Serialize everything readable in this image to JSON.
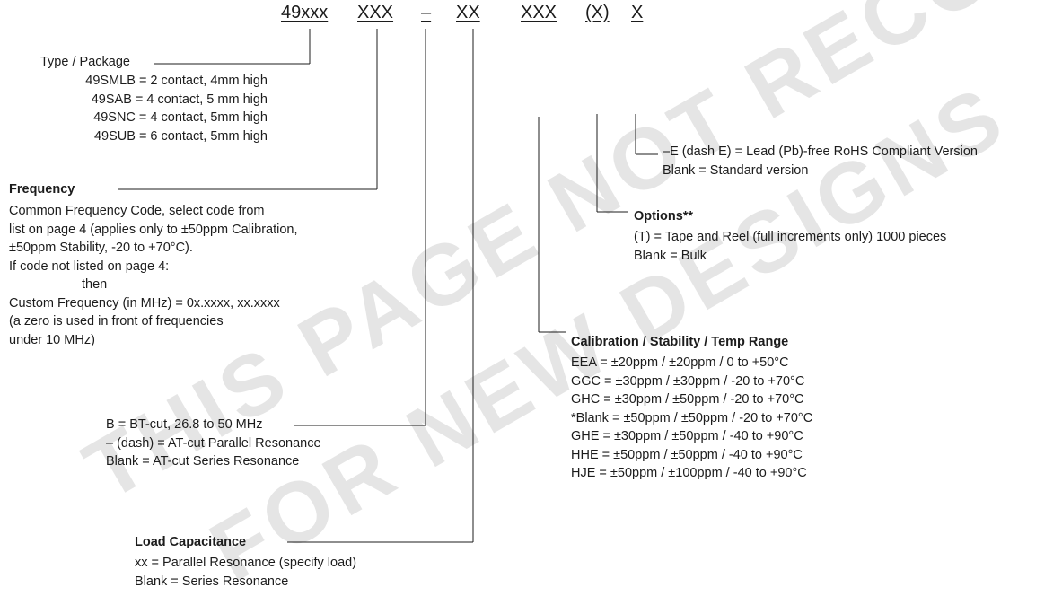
{
  "watermark": {
    "line1": "THIS PAGE NOT RECOMMENDED",
    "line2": "FOR NEW DESIGNS"
  },
  "part_number": {
    "segments": [
      "49xxx",
      "XXX",
      "–",
      "XX",
      "XXX",
      "(X)",
      "X"
    ]
  },
  "package": {
    "title": "Type / Package",
    "items": [
      "49SMLB = 2 contact, 4mm high",
      "49SAB = 4 contact, 5 mm high",
      "49SNC = 4 contact, 5mm high",
      "49SUB = 6 contact, 5mm high"
    ]
  },
  "frequency": {
    "title": "Frequency",
    "lines": [
      "Common Frequency Code, select code from",
      "list on page 4 (applies only to ±50ppm Calibration,",
      "±50ppm Stability, -20 to +70°C).",
      "If code not listed on page 4:",
      "then",
      "Custom Frequency (in MHz) =  0x.xxxx, xx.xxxx",
      "(a zero is used in front of frequencies",
      "under 10 MHz)"
    ]
  },
  "cut": {
    "lines": [
      "B = BT-cut, 26.8 to 50 MHz",
      "– (dash)  = AT-cut Parallel Resonance",
      "Blank = AT-cut Series Resonance"
    ]
  },
  "load": {
    "title": "Load Capacitance",
    "lines": [
      "xx = Parallel Resonance (specify load)",
      "Blank = Series Resonance"
    ]
  },
  "rohs": {
    "lines": [
      "–E (dash E) = Lead (Pb)-free RoHS Compliant Version",
      "Blank = Standard version"
    ]
  },
  "options": {
    "title": "Options**",
    "lines": [
      "(T) = Tape and Reel (full increments only) 1000 pieces",
      "Blank = Bulk"
    ]
  },
  "calibration": {
    "title": "Calibration / Stability / Temp Range",
    "lines": [
      "EEA = ±20ppm / ±20ppm / 0 to +50°C",
      "GGC = ±30ppm / ±30ppm / -20 to +70°C",
      "GHC = ±30ppm / ±50ppm / -20 to +70°C",
      "*Blank = ±50ppm / ±50ppm / -20 to +70°C",
      "GHE = ±30ppm / ±50ppm / -40 to +90°C",
      "HHE = ±50ppm / ±50ppm / -40 to +90°C",
      "HJE = ±50ppm / ±100ppm / -40 to +90°C"
    ]
  }
}
